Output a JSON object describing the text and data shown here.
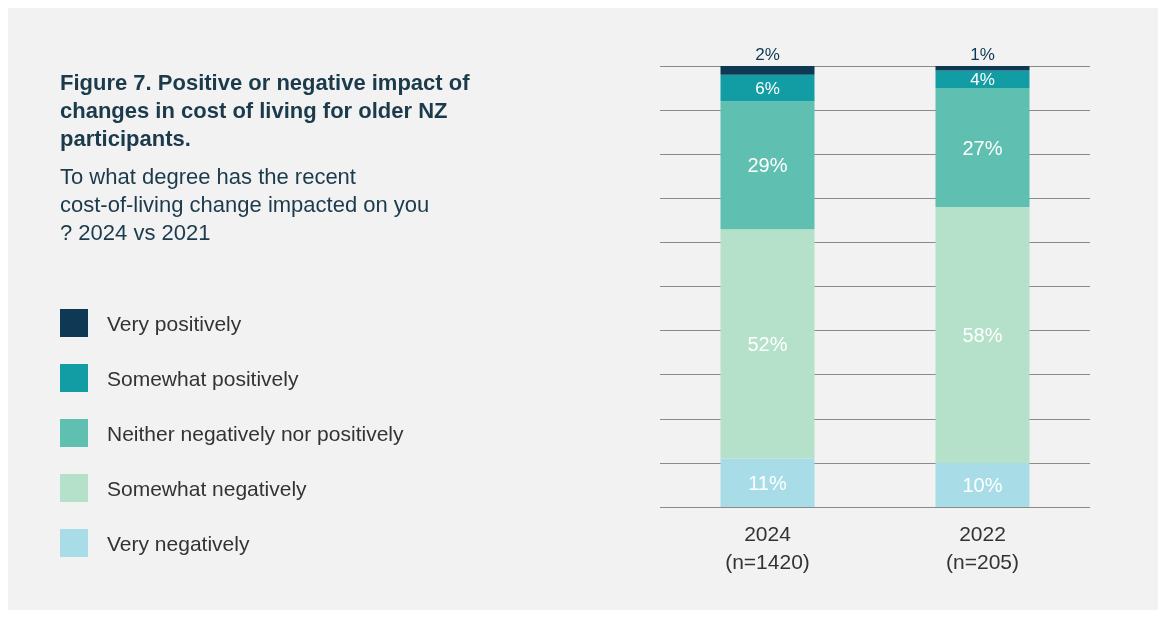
{
  "chart_data": {
    "type": "bar",
    "title": "Figure 7. Positive or negative impact of changes in cost of living for older NZ participants.",
    "subtitle": "To what degree has the recent cost-of-living change impacted on you? 2024 vs 2021",
    "categories": [
      "2024\n(n=1420)",
      "2022\n(n=205)"
    ],
    "stacked": true,
    "ylim": [
      0,
      100
    ],
    "yticks": [
      {
        "value": 0,
        "label": null
      },
      {
        "value": 10,
        "label": null
      },
      {
        "value": 20,
        "label": null
      },
      {
        "value": 30,
        "label": null
      },
      {
        "value": 40,
        "label": null
      },
      {
        "value": 50,
        "label": null
      },
      {
        "value": 60,
        "label": null
      },
      {
        "value": 70,
        "label": null
      },
      {
        "value": 80,
        "label": null
      },
      {
        "value": 90,
        "label": null
      },
      {
        "value": 100,
        "label": null
      }
    ],
    "tick_labels": "x",
    "grid": "y",
    "legend": "left",
    "series": [
      {
        "name": "Very negatively",
        "color": "#a8dde8",
        "values": [
          11,
          10
        ],
        "value_labels": [
          "11%",
          "10%"
        ]
      },
      {
        "name": "Somewhat negatively",
        "color": "#b5e0ca",
        "values": [
          52,
          58
        ],
        "value_labels": [
          "52%",
          "58%"
        ]
      },
      {
        "name": "Neither negatively nor positively",
        "color": "#5fbfb0",
        "values": [
          29,
          27
        ],
        "value_labels": [
          "29%",
          "27%"
        ]
      },
      {
        "name": "Somewhat positively",
        "color": "#129ca3",
        "values": [
          6,
          4
        ],
        "value_labels": [
          "6%",
          "4%"
        ]
      },
      {
        "name": "Very positively",
        "color": "#0f3854",
        "values": [
          2,
          1
        ],
        "value_labels": [
          "2%",
          "1%"
        ]
      }
    ]
  }
}
